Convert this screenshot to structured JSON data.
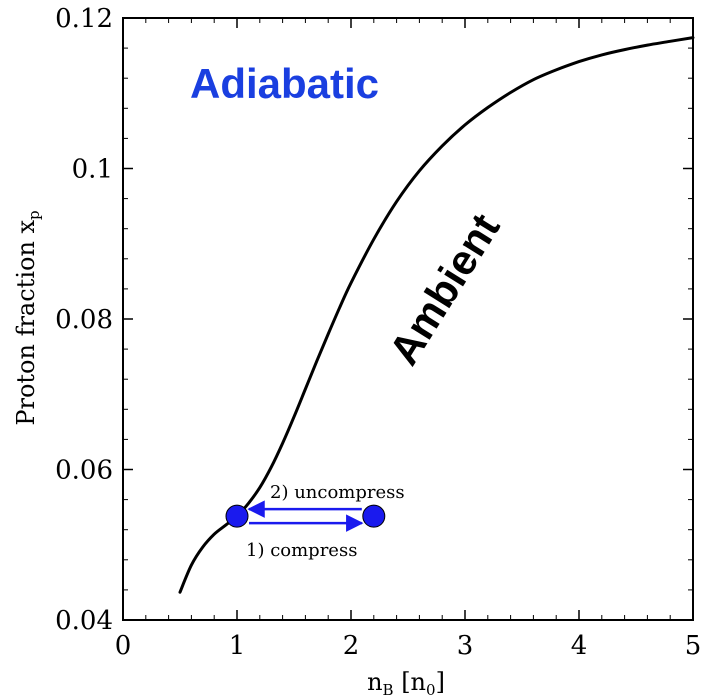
{
  "chart_data": {
    "type": "line",
    "xlabel": {
      "main": "n",
      "sub": "B",
      "unit_open": " [n",
      "unit_sub": "0",
      "unit_close": "]"
    },
    "ylabel": {
      "main": "Proton fraction x",
      "sub": "p"
    },
    "xlim": [
      0,
      5
    ],
    "ylim": [
      0.04,
      0.12
    ],
    "x_ticks": [
      0,
      1,
      2,
      3,
      4,
      5
    ],
    "x_tick_labels": [
      "0",
      "1",
      "2",
      "3",
      "4",
      "5"
    ],
    "y_ticks": [
      0.04,
      0.06,
      0.08,
      0.1,
      0.12
    ],
    "y_tick_labels": [
      "0.04",
      "0.06",
      "0.08",
      "0.1",
      "0.12"
    ],
    "grid": false,
    "series": [
      {
        "name": "Ambient",
        "color": "#000000",
        "x": [
          0.5,
          0.6,
          0.7,
          0.8,
          0.9,
          1.0,
          1.1,
          1.2,
          1.3,
          1.4,
          1.5,
          1.6,
          1.7,
          1.8,
          1.9,
          2.0,
          2.2,
          2.4,
          2.6,
          2.8,
          3.0,
          3.2,
          3.4,
          3.6,
          3.8,
          4.0,
          4.2,
          4.4,
          4.6,
          4.8,
          5.0
        ],
        "y": [
          0.0437,
          0.0473,
          0.0497,
          0.0514,
          0.0526,
          0.0538,
          0.0555,
          0.0576,
          0.0603,
          0.0635,
          0.067,
          0.0707,
          0.0744,
          0.078,
          0.0815,
          0.0848,
          0.0906,
          0.0956,
          0.0997,
          0.103,
          0.1058,
          0.1081,
          0.1101,
          0.1118,
          0.1131,
          0.1142,
          0.1151,
          0.1158,
          0.1164,
          0.1169,
          0.1174
        ]
      }
    ],
    "points": [
      {
        "x": 1.0,
        "y": 0.0538,
        "color": "#1a1aee"
      },
      {
        "x": 2.2,
        "y": 0.0538,
        "color": "#1a1aee"
      }
    ],
    "annotations": {
      "adiabatic": {
        "text": "Adiabatic",
        "color": "#1a3fe0"
      },
      "ambient": {
        "text": "Ambient",
        "color": "#000000"
      },
      "compress": {
        "text": "1) compress",
        "color": "#000000"
      },
      "uncompress": {
        "text": "2) uncompress",
        "color": "#000000"
      },
      "arrow_color": "#1a1aee"
    }
  }
}
